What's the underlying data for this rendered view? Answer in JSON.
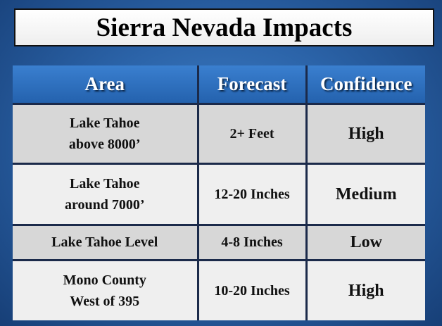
{
  "title": "Sierra Nevada Impacts",
  "table": {
    "header": [
      "Area",
      "Forecast",
      "Confidence"
    ],
    "rows": [
      [
        [
          "Lake Tahoe",
          "above 8000’"
        ],
        "2+ Feet",
        "High"
      ],
      [
        [
          "Lake Tahoe",
          "around 7000’"
        ],
        "12-20 Inches",
        "Medium"
      ],
      [
        [
          "Lake Tahoe Level"
        ],
        "4-8 Inches",
        "Low"
      ],
      [
        [
          "Mono County",
          "West of 395"
        ],
        "10-20 Inches",
        "High"
      ]
    ]
  }
}
